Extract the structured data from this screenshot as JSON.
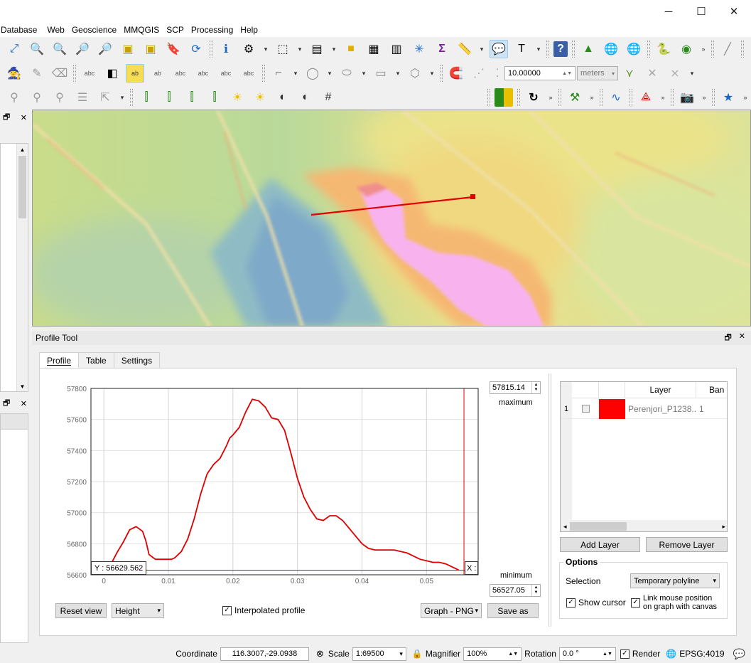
{
  "window": {
    "minimize_label": "─",
    "maximize_label": "☐",
    "close_label": "✕"
  },
  "menu": [
    "Database",
    "Web",
    "Geoscience",
    "MMQGIS",
    "SCP",
    "Processing",
    "Help"
  ],
  "toolbar": {
    "snap_tolerance": "10.00000",
    "snap_units": "meters"
  },
  "dock": {
    "title": "Profile Tool",
    "float_icon": "🗗",
    "close_icon": "✕"
  },
  "tabs": [
    "Profile",
    "Table",
    "Settings"
  ],
  "profile": {
    "maximum_value": "57815.14",
    "maximum_label": "maximum",
    "minimum_value": "56527.05",
    "minimum_label": "minimum",
    "cursor_y_label": "Y : 56629.562",
    "cursor_x_label": "X :",
    "reset_view_label": "Reset view",
    "mode_value": "Height",
    "interpolated_label": "Interpolated profile",
    "interpolated_checked": true,
    "export_format": "Graph - PNG",
    "save_as_label": "Save as"
  },
  "chart_data": {
    "type": "line",
    "xlim": [
      -0.002,
      0.058
    ],
    "ylim": [
      56600,
      57800
    ],
    "xticks": [
      0,
      0.01,
      0.02,
      0.03,
      0.04,
      0.05
    ],
    "xtick_labels": [
      "0",
      "0.01",
      "0.02",
      "0.03",
      "0.04",
      "0.05"
    ],
    "yticks": [
      56600,
      56800,
      57000,
      57200,
      57400,
      57600,
      57800
    ],
    "ytick_labels": [
      "56600",
      "56800",
      "57000",
      "57200",
      "57400",
      "57600",
      "57800"
    ],
    "grid": true,
    "color": "#dd0000",
    "x": [
      0,
      0.001,
      0.002,
      0.003,
      0.0035,
      0.004,
      0.005,
      0.006,
      0.0065,
      0.007,
      0.008,
      0.009,
      0.0105,
      0.011,
      0.012,
      0.013,
      0.014,
      0.015,
      0.016,
      0.017,
      0.018,
      0.019,
      0.0195,
      0.02,
      0.021,
      0.022,
      0.023,
      0.024,
      0.0245,
      0.025,
      0.026,
      0.027,
      0.028,
      0.029,
      0.03,
      0.031,
      0.032,
      0.033,
      0.034,
      0.035,
      0.036,
      0.037,
      0.038,
      0.039,
      0.04,
      0.041,
      0.042,
      0.043,
      0.044,
      0.045,
      0.046,
      0.047,
      0.048,
      0.049,
      0.05,
      0.051,
      0.052,
      0.053,
      0.054,
      0.055
    ],
    "y": [
      56610,
      56660,
      56740,
      56810,
      56850,
      56890,
      56910,
      56880,
      56820,
      56730,
      56700,
      56700,
      56700,
      56710,
      56750,
      56830,
      56960,
      57120,
      57250,
      57310,
      57350,
      57430,
      57480,
      57500,
      57550,
      57650,
      57730,
      57720,
      57700,
      57680,
      57610,
      57600,
      57530,
      57380,
      57220,
      57100,
      57020,
      56960,
      56950,
      56980,
      56980,
      56950,
      56900,
      56850,
      56800,
      56770,
      56760,
      56760,
      56760,
      56760,
      56750,
      56740,
      56720,
      56700,
      56690,
      56680,
      56680,
      56670,
      56650,
      56630
    ],
    "cursor_x": 0.0558,
    "min_line_y": 56629.562
  },
  "layers": {
    "header_layer": "Layer",
    "header_band": "Ban",
    "rows": [
      {
        "index": "1",
        "color": "#ff0000",
        "name": "Perenjori_P1238...",
        "band": "1"
      }
    ],
    "add_label": "Add Layer",
    "remove_label": "Remove Layer"
  },
  "options": {
    "title": "Options",
    "selection_label": "Selection",
    "selection_value": "Temporary polyline",
    "show_cursor_label": "Show cursor",
    "show_cursor_checked": true,
    "link_mouse_label_1": "Link mouse position",
    "link_mouse_label_2": "on graph with canvas",
    "link_mouse_checked": true
  },
  "status": {
    "coordinate_label": "Coordinate",
    "coordinate_value": "116.3007,-29.0938",
    "scale_label": "Scale",
    "scale_value": "1:69500",
    "magnifier_label": "Magnifier",
    "magnifier_value": "100%",
    "rotation_label": "Rotation",
    "rotation_value": "0.0 °",
    "render_label": "Render",
    "render_checked": true,
    "crs_label": "EPSG:4019"
  }
}
